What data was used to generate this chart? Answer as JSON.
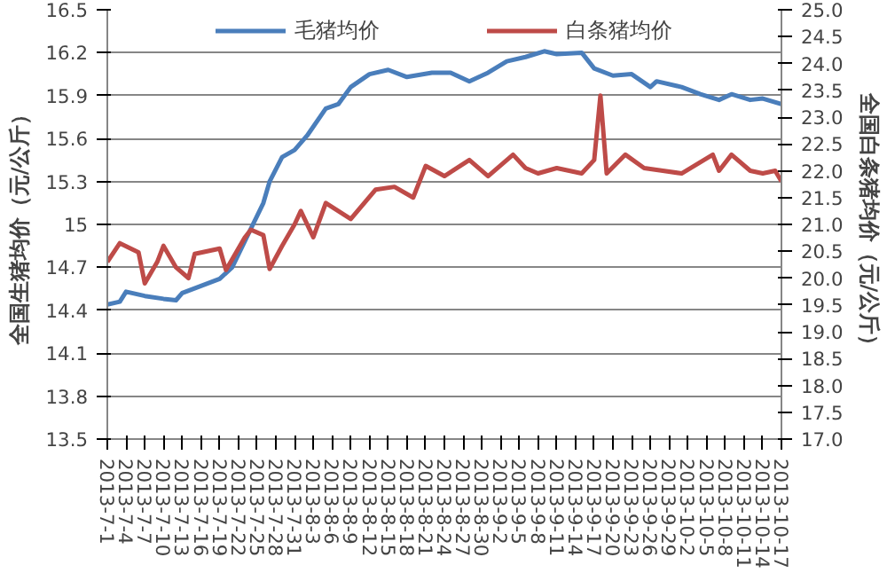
{
  "chart_data": {
    "type": "line",
    "ylabel": "全国生猪均价（元/公斤）",
    "y2label": "全国白条猪均价（元/公斤）",
    "xlim": [
      "2013-07-01",
      "2013-10-17"
    ],
    "xticks": [
      {
        "value": "2013-07-01",
        "label": "2013-7-1"
      },
      {
        "value": "2013-07-04",
        "label": "2013-7-4"
      },
      {
        "value": "2013-07-07",
        "label": "2013-7-7"
      },
      {
        "value": "2013-07-10",
        "label": "2013-7-10"
      },
      {
        "value": "2013-07-13",
        "label": "2013-7-13"
      },
      {
        "value": "2013-07-16",
        "label": "2013-7-16"
      },
      {
        "value": "2013-07-19",
        "label": "2013-7-19"
      },
      {
        "value": "2013-07-22",
        "label": "2013-7-22"
      },
      {
        "value": "2013-07-25",
        "label": "2013-7-25"
      },
      {
        "value": "2013-07-28",
        "label": "2013-7-28"
      },
      {
        "value": "2013-07-31",
        "label": "2013-7-31"
      },
      {
        "value": "2013-08-03",
        "label": "2013-8-3"
      },
      {
        "value": "2013-08-06",
        "label": "2013-8-6"
      },
      {
        "value": "2013-08-09",
        "label": "2013-8-9"
      },
      {
        "value": "2013-08-12",
        "label": "2013-8-12"
      },
      {
        "value": "2013-08-15",
        "label": "2013-8-15"
      },
      {
        "value": "2013-08-18",
        "label": "2013-8-18"
      },
      {
        "value": "2013-08-21",
        "label": "2013-8-21"
      },
      {
        "value": "2013-08-24",
        "label": "2013-8-24"
      },
      {
        "value": "2013-08-27",
        "label": "2013-8-27"
      },
      {
        "value": "2013-08-30",
        "label": "2013-8-30"
      },
      {
        "value": "2013-09-02",
        "label": "2013-9-2"
      },
      {
        "value": "2013-09-05",
        "label": "2013-9-5"
      },
      {
        "value": "2013-09-08",
        "label": "2013-9-8"
      },
      {
        "value": "2013-09-11",
        "label": "2013-9-11"
      },
      {
        "value": "2013-09-14",
        "label": "2013-9-14"
      },
      {
        "value": "2013-09-17",
        "label": "2013-9-17"
      },
      {
        "value": "2013-09-20",
        "label": "2013-9-20"
      },
      {
        "value": "2013-09-23",
        "label": "2013-9-23"
      },
      {
        "value": "2013-09-26",
        "label": "2013-9-26"
      },
      {
        "value": "2013-09-29",
        "label": "2013-9-29"
      },
      {
        "value": "2013-10-02",
        "label": "2013-10-2"
      },
      {
        "value": "2013-10-05",
        "label": "2013-10-5"
      },
      {
        "value": "2013-10-08",
        "label": "2013-10-8"
      },
      {
        "value": "2013-10-11",
        "label": "2013-10-11"
      },
      {
        "value": "2013-10-14",
        "label": "2013-10-14"
      },
      {
        "value": "2013-10-17",
        "label": "2013-10-17"
      }
    ],
    "ylim": [
      13.5,
      16.5
    ],
    "yticks": [
      13.5,
      13.8,
      14.1,
      14.4,
      14.7,
      15,
      15.3,
      15.6,
      15.9,
      16.2,
      16.5
    ],
    "y2lim": [
      17.0,
      25.0
    ],
    "y2ticks": [
      {
        "value": 17,
        "label": "17.0"
      },
      {
        "value": 17.5,
        "label": "17.5"
      },
      {
        "value": 18,
        "label": "18.0"
      },
      {
        "value": 18.5,
        "label": "18.5"
      },
      {
        "value": 19,
        "label": "19.0"
      },
      {
        "value": 19.5,
        "label": "19.5"
      },
      {
        "value": 20,
        "label": "20.0"
      },
      {
        "value": 20.5,
        "label": "20.5"
      },
      {
        "value": 21,
        "label": "21.0"
      },
      {
        "value": 21.5,
        "label": "21.5"
      },
      {
        "value": 22,
        "label": "22.0"
      },
      {
        "value": 22.5,
        "label": "22.5"
      },
      {
        "value": 23,
        "label": "23.0"
      },
      {
        "value": 23.5,
        "label": "23.5"
      },
      {
        "value": 24,
        "label": "24.0"
      },
      {
        "value": 24.5,
        "label": "24.5"
      },
      {
        "value": 25,
        "label": "25.0"
      }
    ],
    "grid": "y",
    "legend": "top",
    "marker": "none",
    "line_style": "solid",
    "series": [
      {
        "name": "毛猪均价",
        "color": "#4a7ebb",
        "x": [
          "2013-07-01",
          "2013-07-03",
          "2013-07-04",
          "2013-07-07",
          "2013-07-10",
          "2013-07-12",
          "2013-07-13",
          "2013-07-16",
          "2013-07-19",
          "2013-07-21",
          "2013-07-23",
          "2013-07-26",
          "2013-07-27",
          "2013-07-29",
          "2013-07-31",
          "2013-08-02",
          "2013-08-05",
          "2013-08-07",
          "2013-08-09",
          "2013-08-12",
          "2013-08-15",
          "2013-08-18",
          "2013-08-22",
          "2013-08-25",
          "2013-08-28",
          "2013-08-31",
          "2013-09-03",
          "2013-09-06",
          "2013-09-09",
          "2013-09-11",
          "2013-09-15",
          "2013-09-17",
          "2013-09-20",
          "2013-09-23",
          "2013-09-26",
          "2013-09-27",
          "2013-10-01",
          "2013-10-04",
          "2013-10-07",
          "2013-10-09",
          "2013-10-12",
          "2013-10-14",
          "2013-10-17"
        ],
        "values": [
          14.44,
          14.46,
          14.53,
          14.5,
          14.48,
          14.47,
          14.52,
          14.57,
          14.62,
          14.7,
          14.88,
          15.15,
          15.3,
          15.47,
          15.52,
          15.62,
          15.81,
          15.84,
          15.96,
          16.05,
          16.08,
          16.03,
          16.06,
          16.06,
          16.0,
          16.06,
          16.14,
          16.17,
          16.21,
          16.19,
          16.2,
          16.09,
          16.04,
          16.05,
          15.96,
          16.0,
          15.96,
          15.91,
          15.87,
          15.91,
          15.87,
          15.88,
          15.84
        ]
      },
      {
        "name": "白条猪均价",
        "color": "#be4b48",
        "axis": "y2",
        "x": [
          "2013-07-01",
          "2013-07-03",
          "2013-07-06",
          "2013-07-07",
          "2013-07-09",
          "2013-07-10",
          "2013-07-12",
          "2013-07-14",
          "2013-07-15",
          "2013-07-19",
          "2013-07-20",
          "2013-07-23",
          "2013-07-24",
          "2013-07-26",
          "2013-07-27",
          "2013-07-29",
          "2013-07-31",
          "2013-08-01",
          "2013-08-03",
          "2013-08-05",
          "2013-08-09",
          "2013-08-13",
          "2013-08-16",
          "2013-08-19",
          "2013-08-21",
          "2013-08-24",
          "2013-08-28",
          "2013-08-31",
          "2013-09-04",
          "2013-09-06",
          "2013-09-08",
          "2013-09-11",
          "2013-09-15",
          "2013-09-17",
          "2013-09-18",
          "2013-09-19",
          "2013-09-22",
          "2013-09-25",
          "2013-09-28",
          "2013-10-01",
          "2013-10-06",
          "2013-10-07",
          "2013-10-09",
          "2013-10-12",
          "2013-10-14",
          "2013-10-16",
          "2013-10-17"
        ],
        "values": [
          20.3,
          20.65,
          20.48,
          19.9,
          20.3,
          20.6,
          20.2,
          20.0,
          20.45,
          20.55,
          20.15,
          20.75,
          20.9,
          20.8,
          20.17,
          20.6,
          21.0,
          21.25,
          20.76,
          21.4,
          21.1,
          21.65,
          21.7,
          21.5,
          22.09,
          21.9,
          22.2,
          21.9,
          22.3,
          22.05,
          21.95,
          22.05,
          21.95,
          22.2,
          23.4,
          21.95,
          22.3,
          22.05,
          22.0,
          21.95,
          22.3,
          22.0,
          22.3,
          22.0,
          21.95,
          22.0,
          21.8
        ]
      }
    ]
  }
}
